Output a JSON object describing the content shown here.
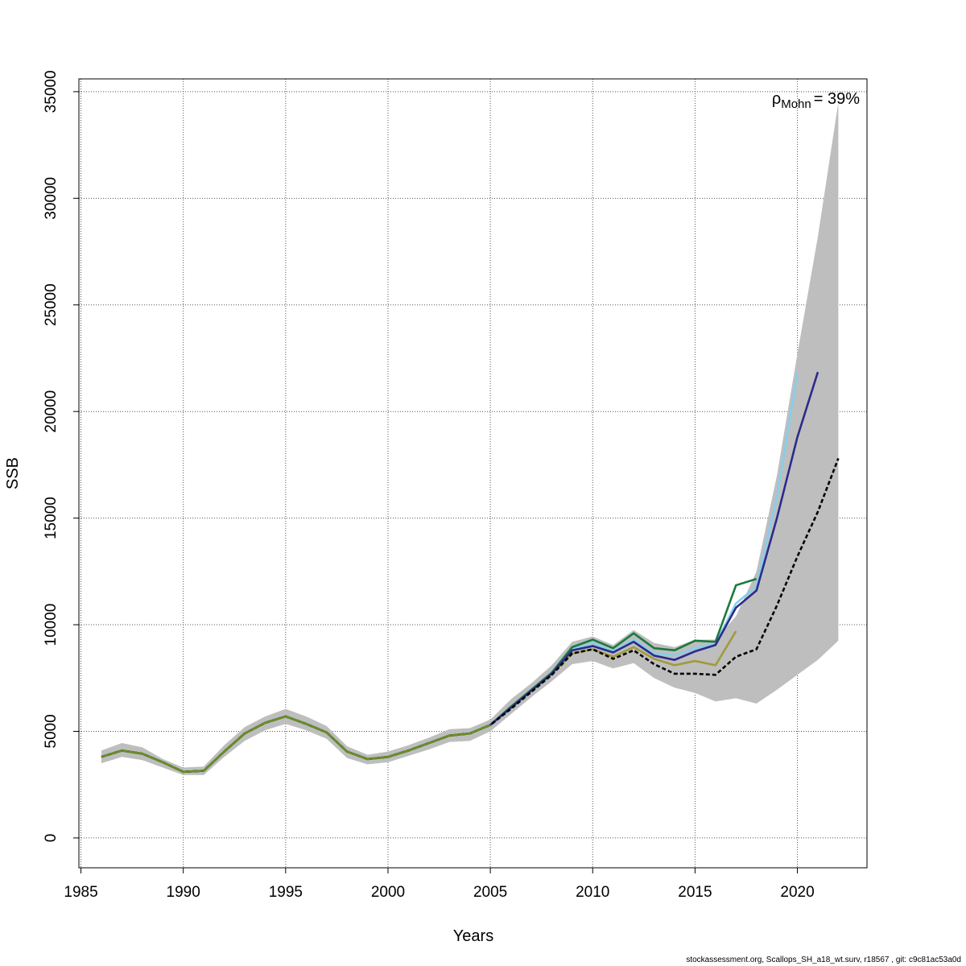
{
  "chart_data": {
    "type": "line",
    "title": "",
    "xlabel": "Years",
    "ylabel": "SSB",
    "xlim": [
      1984.9,
      2023.4
    ],
    "ylim": [
      -1400,
      35600
    ],
    "x_ticks": [
      1985,
      1990,
      1995,
      2000,
      2005,
      2010,
      2015,
      2020
    ],
    "y_ticks": [
      0,
      5000,
      10000,
      15000,
      20000,
      25000,
      30000,
      35000
    ],
    "grid": true,
    "annotation": {
      "symbol": "ρ",
      "subscript": "Mohn",
      "text": "= 39%"
    },
    "confidence_band": {
      "color": "#bebebe",
      "x": [
        1986,
        1987,
        1988,
        1989,
        1990,
        1991,
        1992,
        1993,
        1994,
        1995,
        1996,
        1997,
        1998,
        1999,
        2000,
        2001,
        2002,
        2003,
        2004,
        2005,
        2006,
        2007,
        2008,
        2009,
        2010,
        2011,
        2012,
        2013,
        2014,
        2015,
        2016,
        2017,
        2018,
        2019,
        2020,
        2021,
        2022
      ],
      "lower": [
        3500,
        3800,
        3650,
        3300,
        2950,
        2950,
        3800,
        4550,
        5050,
        5350,
        5050,
        4650,
        3750,
        3450,
        3550,
        3850,
        4150,
        4500,
        4550,
        5000,
        5800,
        6600,
        7350,
        8150,
        8300,
        7950,
        8200,
        7500,
        7050,
        6800,
        6400,
        6550,
        6300,
        6950,
        7650,
        8350,
        9250
      ],
      "upper": [
        4100,
        4450,
        4250,
        3700,
        3300,
        3350,
        4350,
        5200,
        5700,
        6050,
        5700,
        5250,
        4300,
        3900,
        4050,
        4350,
        4700,
        5100,
        5150,
        5550,
        6500,
        7250,
        8100,
        9200,
        9450,
        9050,
        9750,
        9150,
        8950,
        9300,
        9300,
        10400,
        12500,
        17000,
        22700,
        28200,
        34500
      ]
    },
    "series": [
      {
        "color": "#a09a3a",
        "dashed": false,
        "x": [
          1986,
          1987,
          1988,
          1989,
          1990,
          1991,
          1992,
          1993,
          1994,
          1995,
          1996,
          1997,
          1998,
          1999,
          2000,
          2001,
          2002,
          2003,
          2004,
          2005,
          2006,
          2007,
          2008,
          2009,
          2010,
          2011,
          2012,
          2013,
          2014,
          2015,
          2016,
          2017
        ],
        "values": [
          3800,
          4100,
          3950,
          3550,
          3100,
          3150,
          4050,
          4900,
          5400,
          5700,
          5350,
          4950,
          4050,
          3700,
          3800,
          4100,
          4450,
          4800,
          4900,
          5300,
          6100,
          6900,
          7700,
          8650,
          8850,
          8500,
          8950,
          8400,
          8100,
          8300,
          8100,
          9700
        ]
      },
      {
        "color": "#87ceeb",
        "dashed": false,
        "x": [
          1986,
          1987,
          1988,
          1989,
          1990,
          1991,
          1992,
          1993,
          1994,
          1995,
          1996,
          1997,
          1998,
          1999,
          2000,
          2001,
          2002,
          2003,
          2004,
          2005,
          2006,
          2007,
          2008,
          2009,
          2010,
          2011,
          2012,
          2013,
          2014,
          2015,
          2016,
          2017,
          2018,
          2019,
          2020
        ],
        "values": [
          3800,
          4100,
          3950,
          3550,
          3100,
          3150,
          4050,
          4900,
          5400,
          5700,
          5350,
          4950,
          4050,
          3700,
          3800,
          4100,
          4450,
          4800,
          4900,
          5300,
          6100,
          6900,
          7700,
          8850,
          9150,
          8750,
          9300,
          8650,
          8550,
          8900,
          9100,
          11000,
          11800,
          16000,
          21800
        ]
      },
      {
        "color": "#1a7a3e",
        "dashed": false,
        "x": [
          1986,
          1987,
          1988,
          1989,
          1990,
          1991,
          1992,
          1993,
          1994,
          1995,
          1996,
          1997,
          1998,
          1999,
          2000,
          2001,
          2002,
          2003,
          2004,
          2005,
          2006,
          2007,
          2008,
          2009,
          2010,
          2011,
          2012,
          2013,
          2014,
          2015,
          2016,
          2017,
          2018
        ],
        "values": [
          3800,
          4100,
          3950,
          3550,
          3100,
          3150,
          4050,
          4900,
          5400,
          5700,
          5350,
          4950,
          4050,
          3700,
          3800,
          4100,
          4450,
          4800,
          4900,
          5300,
          6150,
          6950,
          7750,
          8950,
          9300,
          8900,
          9600,
          8900,
          8800,
          9250,
          9200,
          11850,
          12150
        ]
      },
      {
        "color": "#2b2b8c",
        "dashed": false,
        "x": [
          1986,
          1987,
          1988,
          1989,
          1990,
          1991,
          1992,
          1993,
          1994,
          1995,
          1996,
          1997,
          1998,
          1999,
          2000,
          2001,
          2002,
          2003,
          2004,
          2005,
          2006,
          2007,
          2008,
          2009,
          2010,
          2011,
          2012,
          2013,
          2014,
          2015,
          2016,
          2017,
          2018,
          2019,
          2020,
          2021
        ],
        "values": [
          3800,
          4100,
          3950,
          3550,
          3100,
          3150,
          4050,
          4900,
          5400,
          5700,
          5350,
          4950,
          4050,
          3700,
          3800,
          4100,
          4450,
          4800,
          4900,
          5300,
          6100,
          6900,
          7700,
          8800,
          9000,
          8700,
          9200,
          8550,
          8350,
          8750,
          9050,
          10800,
          11600,
          15000,
          18800,
          21850
        ]
      },
      {
        "color": "#000000",
        "dashed": true,
        "x": [
          1986,
          1987,
          1988,
          1989,
          1990,
          1991,
          1992,
          1993,
          1994,
          1995,
          1996,
          1997,
          1998,
          1999,
          2000,
          2001,
          2002,
          2003,
          2004,
          2005,
          2006,
          2007,
          2008,
          2009,
          2010,
          2011,
          2012,
          2013,
          2014,
          2015,
          2016,
          2017,
          2018,
          2019,
          2020,
          2021,
          2022
        ],
        "values": [
          3800,
          4100,
          3950,
          3550,
          3100,
          3150,
          4050,
          4900,
          5400,
          5700,
          5350,
          4950,
          4050,
          3700,
          3800,
          4100,
          4450,
          4800,
          4900,
          5300,
          6050,
          6850,
          7650,
          8650,
          8850,
          8400,
          8800,
          8150,
          7700,
          7700,
          7650,
          8500,
          8850,
          10900,
          13200,
          15300,
          17800
        ]
      },
      {
        "color": "#6b8e23",
        "dashed": false,
        "x": [
          1986,
          1987,
          1988,
          1989,
          1990,
          1991,
          1992,
          1993,
          1994,
          1995,
          1996,
          1997,
          1998,
          1999,
          2000,
          2001,
          2002,
          2003,
          2004,
          2005
        ],
        "values": [
          3800,
          4100,
          3950,
          3550,
          3100,
          3150,
          4050,
          4900,
          5400,
          5700,
          5350,
          4950,
          4050,
          3700,
          3800,
          4100,
          4450,
          4800,
          4900,
          5300
        ]
      }
    ]
  },
  "footer": "stockassessment.org, Scallops_SH_a18_wt.surv, r18567 , git: c9c81ac53a0d"
}
